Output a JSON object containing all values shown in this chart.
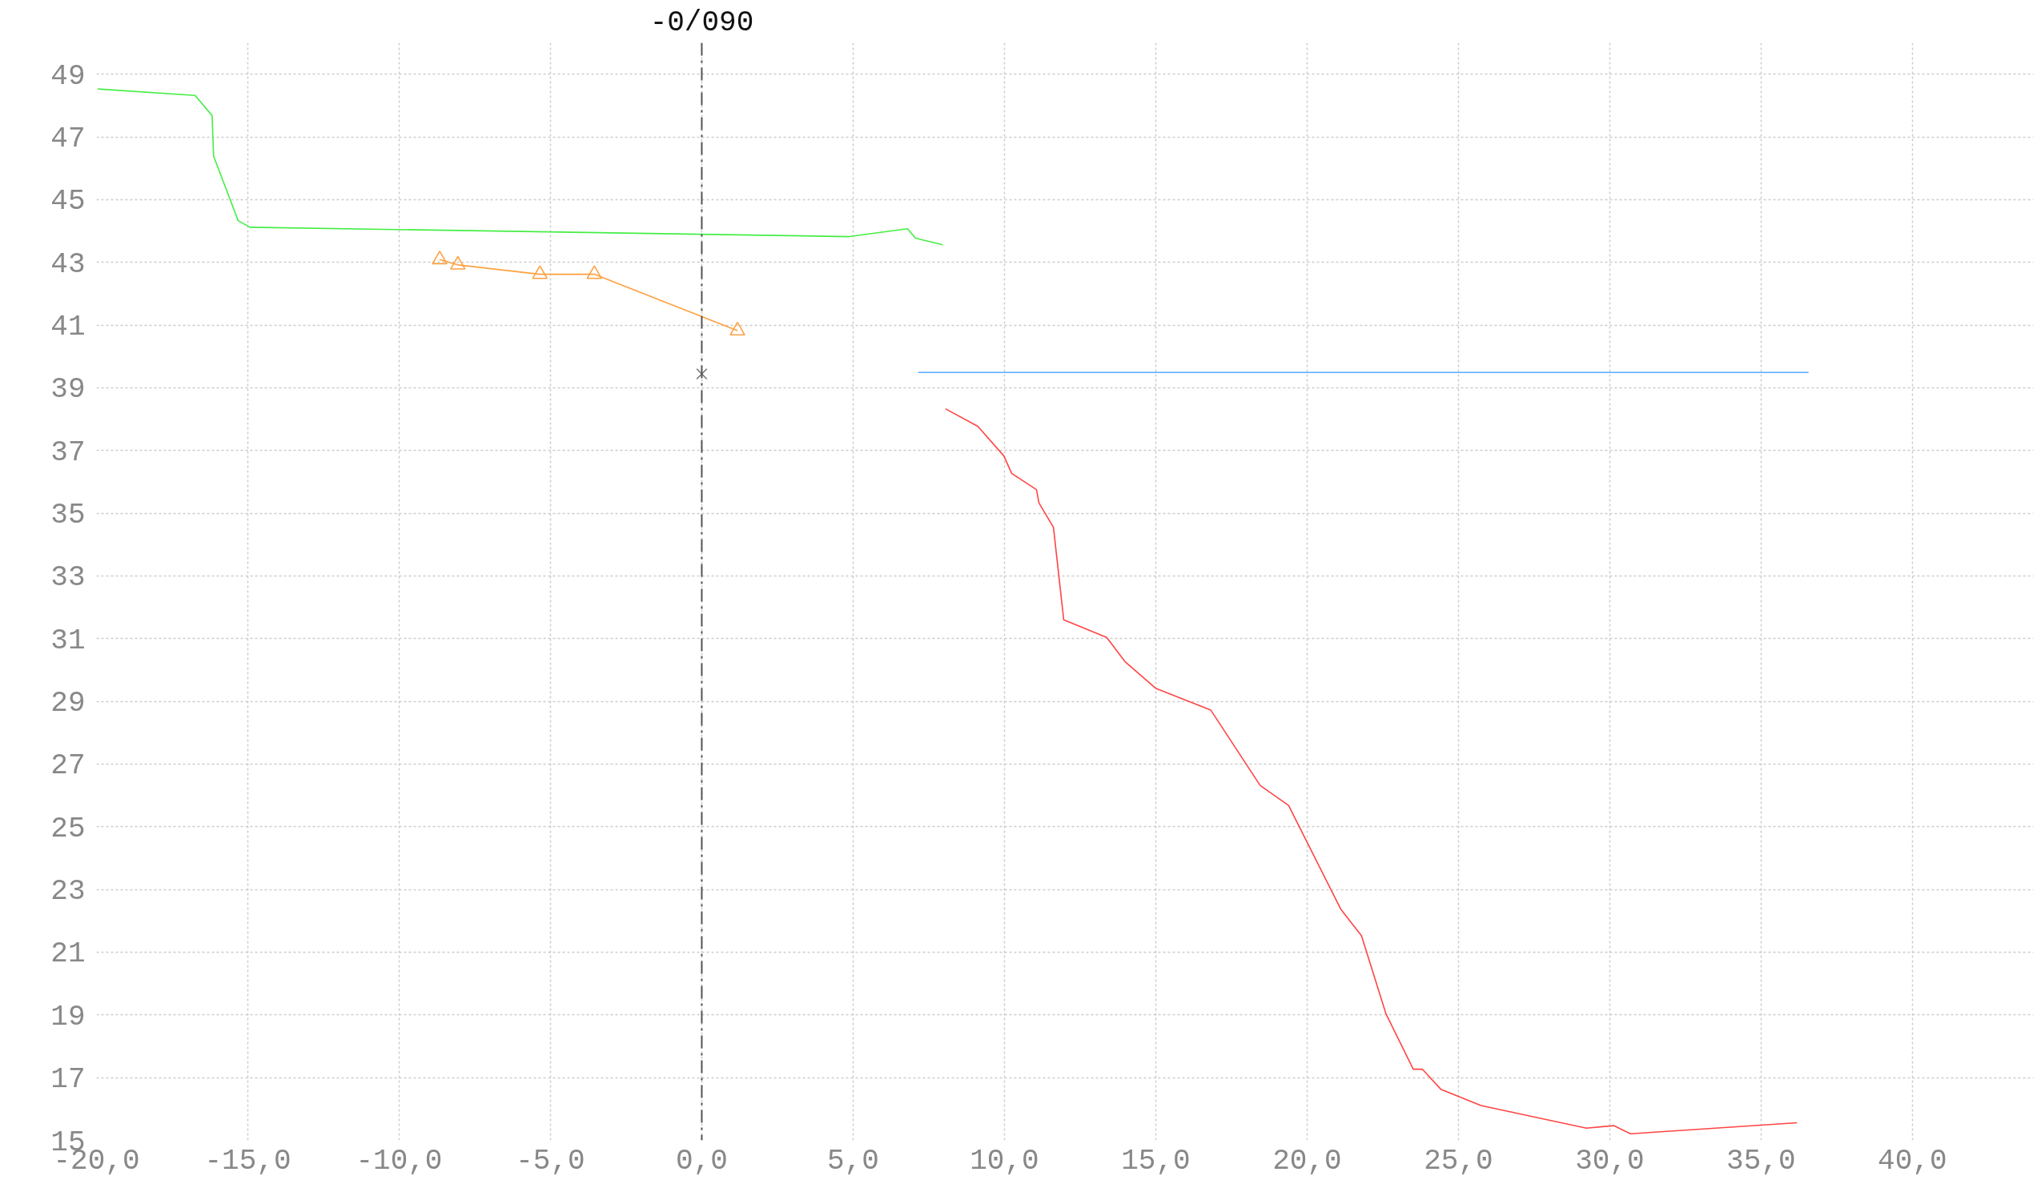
{
  "chart_data": {
    "type": "line",
    "xlim": [
      -20,
      44
    ],
    "ylim": [
      15,
      50
    ],
    "xticks": [
      {
        "value": -20,
        "label": "-20,0"
      },
      {
        "value": -15,
        "label": "-15,0"
      },
      {
        "value": -10,
        "label": "-10,0"
      },
      {
        "value": -5,
        "label": "-5,0"
      },
      {
        "value": 0,
        "label": "0,0"
      },
      {
        "value": 5,
        "label": "5,0"
      },
      {
        "value": 10,
        "label": "10,0"
      },
      {
        "value": 15,
        "label": "15,0"
      },
      {
        "value": 20,
        "label": "20,0"
      },
      {
        "value": 25,
        "label": "25,0"
      },
      {
        "value": 30,
        "label": "30,0"
      },
      {
        "value": 35,
        "label": "35,0"
      },
      {
        "value": 40,
        "label": "40,0"
      }
    ],
    "yticks": [
      15,
      17,
      19,
      21,
      23,
      25,
      27,
      29,
      31,
      33,
      35,
      37,
      39,
      41,
      43,
      45,
      47,
      49
    ],
    "grid": true,
    "ref_lines": [
      {
        "axis": "x",
        "value": 0,
        "label": "-0/090",
        "color": "#555555",
        "line_style": "dashdot"
      }
    ],
    "series": [
      {
        "color": "#44ee44",
        "x": [
          -19.96,
          -16.74,
          -16.18,
          -16.13,
          -15.32,
          -14.93,
          4.87,
          6.8,
          7.06,
          7.96
        ],
        "values": [
          48.53,
          48.32,
          47.68,
          46.39,
          44.33,
          44.12,
          43.82,
          44.07,
          43.77,
          43.56
        ]
      },
      {
        "color": "#ffa040",
        "marker": "triangle",
        "x": [
          -8.66,
          -8.06,
          -5.35,
          -3.55,
          1.18
        ],
        "values": [
          43.09,
          42.92,
          42.62,
          42.62,
          40.82
        ]
      },
      {
        "type": "scatter",
        "marker": "cross",
        "color": "#777777",
        "x": [
          0
        ],
        "values": [
          39.44
        ]
      },
      {
        "color": "#55aaff",
        "x": [
          7.15,
          36.57
        ],
        "values": [
          39.49,
          39.49
        ]
      },
      {
        "color": "#ff4444",
        "x": [
          8.05,
          9.12,
          9.98,
          10.24,
          11.06,
          11.14,
          11.62,
          11.96,
          13.38,
          13.98,
          15.01,
          16.82,
          18.45,
          19.39,
          21.11,
          21.8,
          22.61,
          23.51,
          23.81,
          24.42,
          25.75,
          29.23,
          30.13,
          30.69,
          36.19
        ],
        "values": [
          38.33,
          37.77,
          36.83,
          36.27,
          35.75,
          35.33,
          34.55,
          31.6,
          31.04,
          30.27,
          29.41,
          28.72,
          26.32,
          25.68,
          22.38,
          21.52,
          19.03,
          17.27,
          17.27,
          16.63,
          16.11,
          15.39,
          15.47,
          15.21,
          15.56
        ]
      }
    ]
  }
}
